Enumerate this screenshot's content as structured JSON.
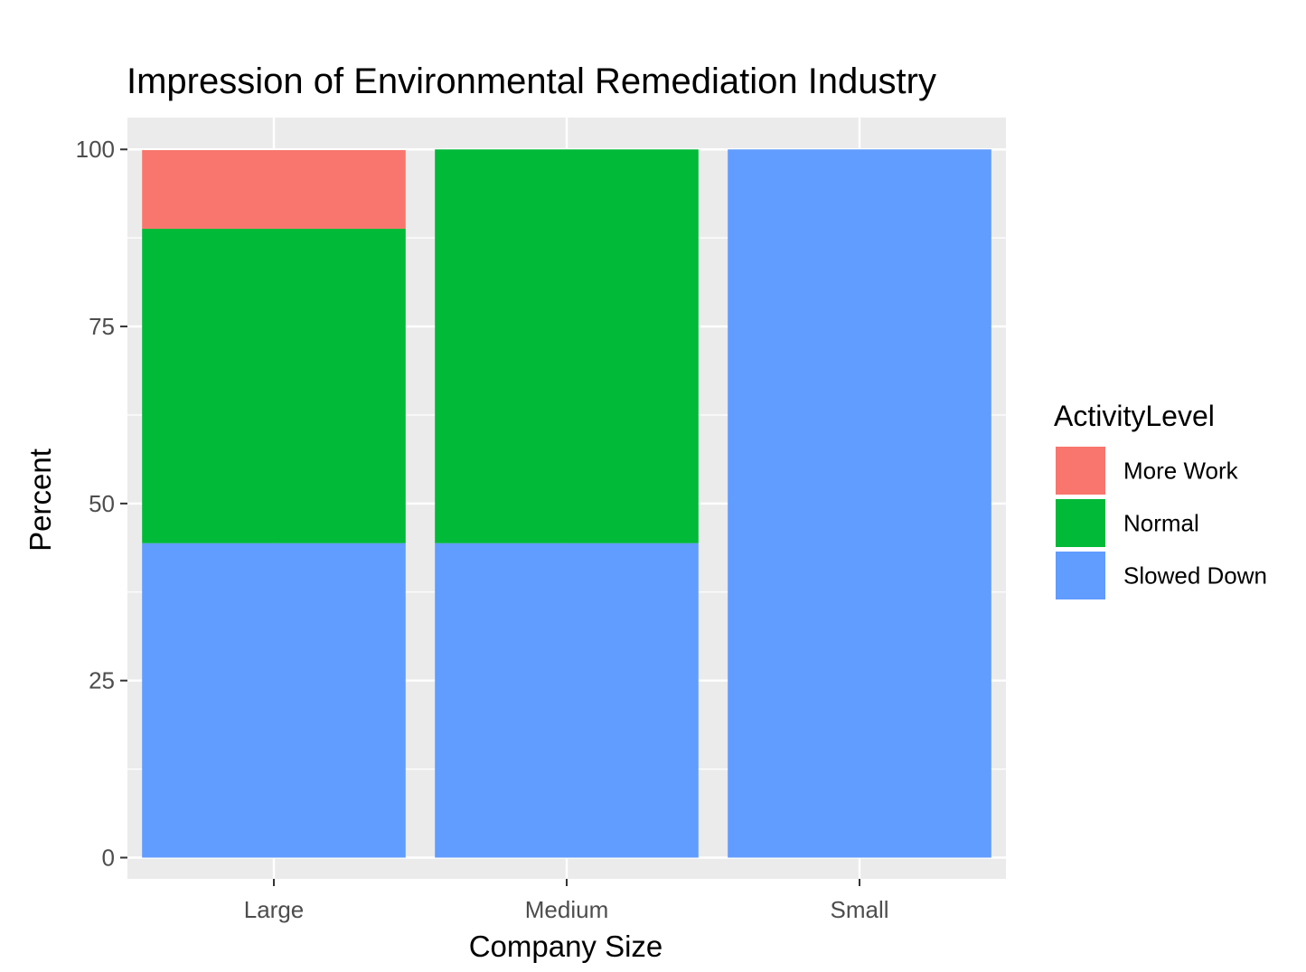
{
  "chart_data": {
    "type": "bar",
    "stacked": true,
    "title": "Impression of Environmental Remediation Industry",
    "xlabel": "Company Size",
    "ylabel": "Percent",
    "ylim": [
      -3,
      104.5
    ],
    "yticks": [
      0,
      25,
      50,
      75,
      100
    ],
    "categories": [
      "Large",
      "Medium",
      "Small"
    ],
    "series": [
      {
        "name": "Slowed Down",
        "color": "#619CFF",
        "values": [
          44.4,
          44.4,
          100
        ]
      },
      {
        "name": "Normal",
        "color": "#00BA38",
        "values": [
          44.4,
          55.6,
          0
        ]
      },
      {
        "name": "More Work",
        "color": "#F8766D",
        "values": [
          11.1,
          0,
          0
        ]
      }
    ],
    "legend": {
      "title": "ActivityLevel",
      "position": "right",
      "items": [
        {
          "label": "More Work",
          "color": "#F8766D"
        },
        {
          "label": "Normal",
          "color": "#00BA38"
        },
        {
          "label": "Slowed Down",
          "color": "#619CFF"
        }
      ]
    },
    "grid": true,
    "panel_background": "#EBEBEB"
  }
}
